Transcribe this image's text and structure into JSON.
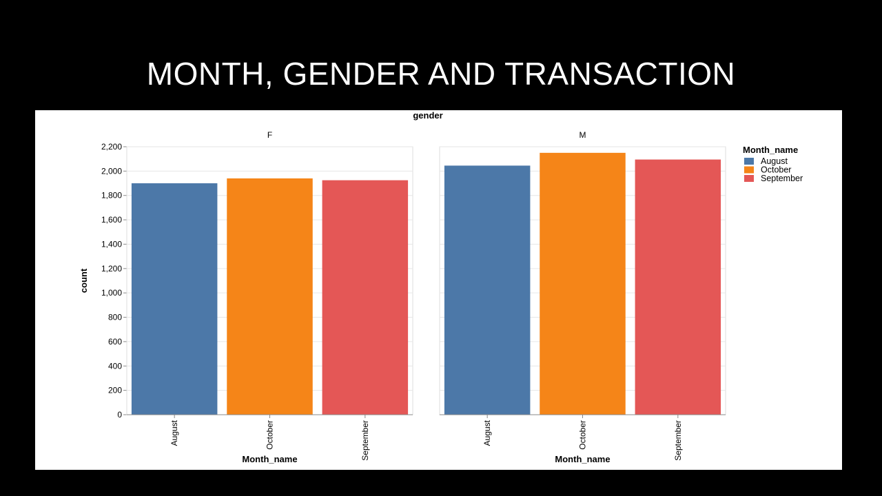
{
  "slide": {
    "title": "MONTH, GENDER AND TRANSACTION"
  },
  "chart_data": {
    "type": "bar",
    "column_header": "gender",
    "facets": [
      "F",
      "M"
    ],
    "categories": [
      "August",
      "October",
      "September"
    ],
    "xlabel": "Month_name",
    "ylabel": "count",
    "ylim": [
      0,
      2200
    ],
    "yticks": [
      0,
      200,
      400,
      600,
      800,
      1000,
      1200,
      1400,
      1600,
      1800,
      2000,
      2200
    ],
    "ytick_labels": [
      "0",
      "200",
      "400",
      "600",
      "800",
      "1,000",
      "1,200",
      "1,400",
      "1,600",
      "1,800",
      "2,000",
      "2,200"
    ],
    "values": {
      "F": [
        1900,
        1940,
        1925
      ],
      "M": [
        2045,
        2150,
        2095
      ]
    },
    "colors": {
      "August": "#4c78a8",
      "October": "#f58518",
      "September": "#e45756"
    },
    "grid": true,
    "legend": {
      "title": "Month_name",
      "entries": [
        "August",
        "October",
        "September"
      ],
      "placement": "right"
    }
  }
}
